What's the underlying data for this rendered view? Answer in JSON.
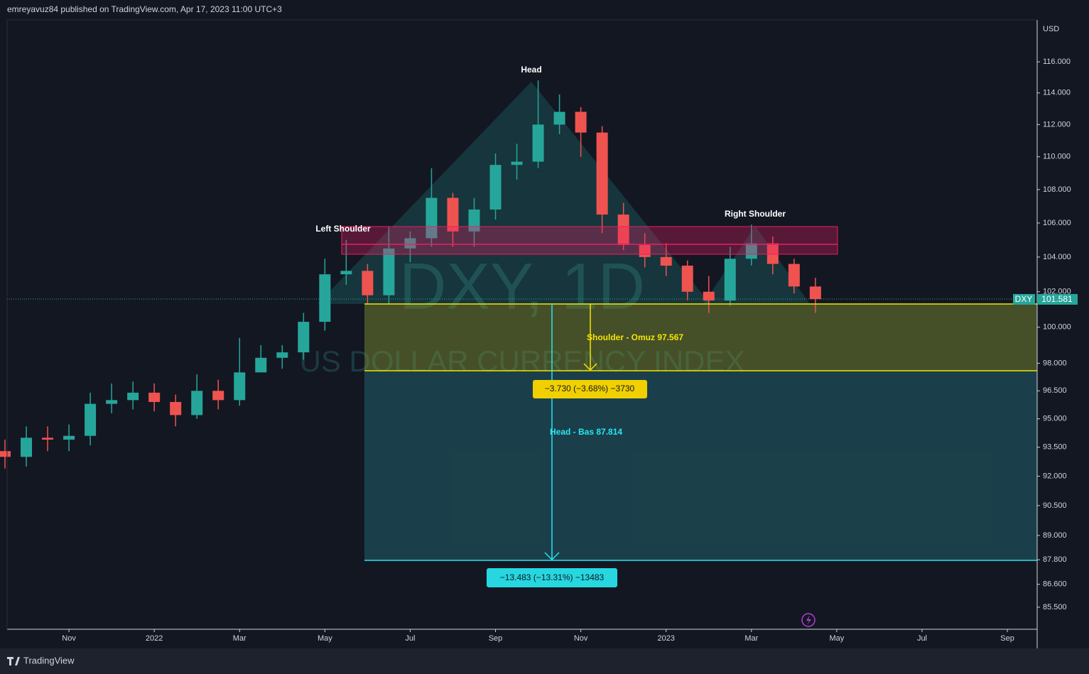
{
  "header": {
    "byline": "emreyavuz84 published on TradingView.com, Apr 17, 2023 11:00 UTC+3",
    "currency": "USD",
    "brand": "TradingView"
  },
  "watermark": {
    "symbol": "DXY, 1D",
    "name": "US DOLLAR CURRENCY INDEX"
  },
  "price_tag": {
    "symbol": "DXY",
    "price": "101.581"
  },
  "annotations": {
    "head": "Head",
    "left_shoulder": "Left Shoulder",
    "right_shoulder": "Right Shoulder",
    "shoulder_target": "Shoulder - Omuz 97.567",
    "shoulder_measure": "−3.730 (−3.68%) −3730",
    "head_target": "Head - Bas 87.814",
    "head_measure": "−13.483 (−13.31%) −13483"
  },
  "chart_data": {
    "type": "candlestick",
    "log_scale": true,
    "grid": false,
    "up_color": "#26a69a",
    "down_color": "#ef5350",
    "categories": [
      null,
      null,
      null,
      "Nov",
      null,
      null,
      null,
      "2022",
      null,
      null,
      null,
      "Mar",
      null,
      null,
      null,
      "May",
      null,
      null,
      null,
      "Jul",
      null,
      null,
      null,
      "Sep",
      null,
      null,
      null,
      "Nov",
      null,
      null,
      null,
      "2023",
      null,
      null,
      null,
      "Mar",
      null,
      null,
      null,
      "May",
      null,
      null,
      null,
      "Jul",
      null,
      null,
      null,
      "Sep",
      null
    ],
    "open": [
      93.3,
      93.0,
      94.0,
      93.9,
      94.1,
      95.8,
      96.0,
      96.4,
      95.9,
      95.2,
      96.5,
      96.0,
      97.5,
      98.3,
      98.6,
      100.3,
      103.0,
      103.2,
      101.8,
      104.5,
      105.1,
      107.5,
      105.5,
      106.8,
      109.5,
      109.7,
      112.0,
      112.8,
      111.5,
      106.5,
      104.7,
      104.0,
      103.5,
      102.0,
      101.5,
      103.9,
      104.8,
      103.6,
      102.3,
      null,
      null,
      null,
      null,
      null,
      null,
      null,
      null,
      null,
      null
    ],
    "high": [
      93.9,
      94.6,
      94.6,
      94.7,
      96.4,
      96.9,
      97.0,
      96.9,
      96.3,
      97.4,
      97.1,
      99.4,
      99.0,
      99.0,
      100.8,
      103.9,
      105.0,
      103.6,
      105.8,
      105.5,
      109.3,
      107.8,
      107.5,
      110.2,
      110.8,
      114.8,
      113.9,
      113.1,
      111.9,
      107.2,
      105.4,
      104.8,
      103.8,
      102.9,
      104.6,
      105.9,
      105.2,
      103.9,
      102.8,
      null,
      null,
      null,
      null,
      null,
      null,
      null,
      null,
      null,
      null
    ],
    "low": [
      92.4,
      92.5,
      93.3,
      93.3,
      93.6,
      95.3,
      95.5,
      95.4,
      94.6,
      95.0,
      95.5,
      95.7,
      97.6,
      97.7,
      98.2,
      99.8,
      102.4,
      101.3,
      101.3,
      103.7,
      104.6,
      104.6,
      104.6,
      106.2,
      108.6,
      109.3,
      111.4,
      110.0,
      105.4,
      104.4,
      103.4,
      102.9,
      101.5,
      100.8,
      101.2,
      103.5,
      103.0,
      101.9,
      100.8,
      null,
      null,
      null,
      null,
      null,
      null,
      null,
      null,
      null,
      null
    ],
    "close": [
      93.0,
      94.0,
      93.9,
      94.1,
      95.8,
      96.0,
      96.4,
      95.9,
      95.2,
      96.5,
      96.0,
      97.5,
      98.3,
      98.6,
      100.3,
      103.0,
      103.2,
      101.8,
      104.5,
      105.1,
      107.5,
      105.5,
      106.8,
      109.5,
      109.7,
      112.0,
      112.8,
      111.5,
      106.5,
      104.7,
      104.0,
      103.5,
      102.0,
      101.5,
      103.9,
      104.8,
      103.6,
      102.3,
      101.58,
      null,
      null,
      null,
      null,
      null,
      null,
      null,
      null,
      null,
      null
    ],
    "ylim": [
      84.45,
      118.66
    ],
    "yticks": [
      {
        "value": 116,
        "label": "116.000"
      },
      {
        "value": 114,
        "label": "114.000"
      },
      {
        "value": 112,
        "label": "112.000"
      },
      {
        "value": 110,
        "label": "110.000"
      },
      {
        "value": 108,
        "label": "108.000"
      },
      {
        "value": 106,
        "label": "106.000"
      },
      {
        "value": 104,
        "label": "104.000"
      },
      {
        "value": 102,
        "label": "102.000"
      },
      {
        "value": 100,
        "label": "100.000"
      },
      {
        "value": 98,
        "label": "98.000"
      },
      {
        "value": 96.5,
        "label": "96.500"
      },
      {
        "value": 95,
        "label": "95.000"
      },
      {
        "value": 93.5,
        "label": "93.500"
      },
      {
        "value": 92,
        "label": "92.000"
      },
      {
        "value": 90.5,
        "label": "90.500"
      },
      {
        "value": 89,
        "label": "89.000"
      },
      {
        "value": 87.8,
        "label": "87.800"
      },
      {
        "value": 86.6,
        "label": "86.600"
      },
      {
        "value": 85.5,
        "label": "85.500"
      }
    ]
  }
}
